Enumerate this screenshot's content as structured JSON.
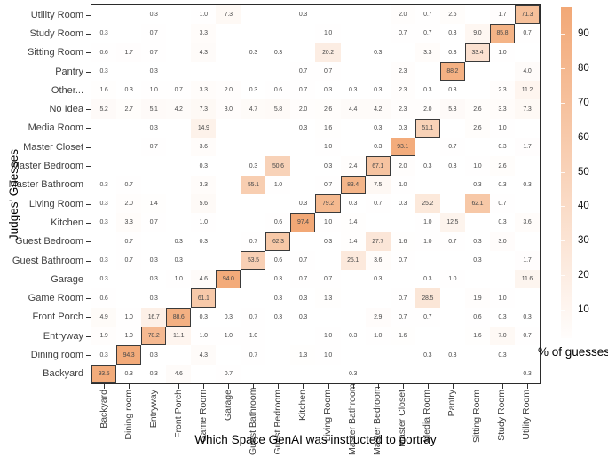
{
  "figure": {
    "x_axis_title": "Which Space GenAI was instructed to portray",
    "y_axis_title": "Judges' Guesses",
    "legend_title": "% of guesses"
  },
  "colors": {
    "scale_low": "#FFFFFF",
    "scale_high": "#F2A672",
    "diag_cell_border": "#3A3A3A",
    "panel_border": "#2B2B2B",
    "axis_text": "#404040"
  },
  "chart_data": {
    "type": "heatmap",
    "title": "",
    "xlabel": "Which Space GenAI was instructed to portray",
    "ylabel": "Judges' Guesses",
    "legend": {
      "title": "% of guesses",
      "ticks": [
        90,
        80,
        70,
        60,
        50,
        40,
        30,
        20,
        10
      ],
      "position": "right",
      "range": [
        0,
        100
      ]
    },
    "grid": false,
    "value_unit": "percent",
    "highlight_rule": "cells where judge guess equals instructed space are outlined",
    "x_categories": [
      "Backyard",
      "Dining room",
      "Entryway",
      "Front Porch",
      "Game Room",
      "Garage",
      "Guest Bathroom",
      "Guest Bedroom",
      "Kitchen",
      "Living Room",
      "Master Bathroom",
      "Master Bedroom",
      "Master Closet",
      "Media Room",
      "Pantry",
      "Sitting Room",
      "Study Room",
      "Utility Room"
    ],
    "rows_top_to_bottom": [
      {
        "label": "Utility Room",
        "values": [
          null,
          null,
          0.3,
          null,
          1.0,
          7.3,
          null,
          null,
          0.3,
          null,
          null,
          null,
          2.0,
          0.7,
          2.6,
          null,
          1.7,
          71.3
        ]
      },
      {
        "label": "Study Room",
        "values": [
          0.3,
          null,
          0.7,
          null,
          3.3,
          null,
          null,
          null,
          null,
          1.0,
          null,
          null,
          0.7,
          0.7,
          0.3,
          9.0,
          85.8,
          0.7
        ]
      },
      {
        "label": "Sitting Room",
        "values": [
          0.6,
          1.7,
          0.7,
          null,
          4.3,
          null,
          0.3,
          0.3,
          null,
          20.2,
          null,
          0.3,
          null,
          3.3,
          0.3,
          33.4,
          1.0,
          null
        ]
      },
      {
        "label": "Pantry",
        "values": [
          0.3,
          null,
          0.3,
          null,
          null,
          null,
          null,
          null,
          0.7,
          0.7,
          null,
          null,
          2.3,
          null,
          88.2,
          null,
          null,
          4.0
        ]
      },
      {
        "label": "Other...",
        "values": [
          1.6,
          0.3,
          1.0,
          0.7,
          3.3,
          2.0,
          0.3,
          0.6,
          0.7,
          0.3,
          0.3,
          0.3,
          2.3,
          0.3,
          0.3,
          null,
          2.3,
          11.2
        ]
      },
      {
        "label": "No Idea",
        "values": [
          5.2,
          2.7,
          5.1,
          4.2,
          7.3,
          3.0,
          4.7,
          5.8,
          2.0,
          2.6,
          4.4,
          4.2,
          2.3,
          2.0,
          5.3,
          2.6,
          3.3,
          7.3
        ]
      },
      {
        "label": "Media Room",
        "values": [
          null,
          null,
          0.3,
          null,
          14.9,
          null,
          null,
          null,
          0.3,
          1.6,
          null,
          0.3,
          0.3,
          51.1,
          null,
          2.6,
          1.0,
          null
        ]
      },
      {
        "label": "Master Closet",
        "values": [
          null,
          null,
          0.7,
          null,
          3.6,
          null,
          null,
          null,
          null,
          1.0,
          null,
          0.3,
          93.1,
          null,
          0.7,
          null,
          0.3,
          1.7
        ]
      },
      {
        "label": "Master Bedroom",
        "values": [
          null,
          null,
          null,
          null,
          0.3,
          null,
          0.3,
          50.6,
          null,
          0.3,
          2.4,
          67.1,
          2.0,
          0.3,
          0.3,
          1.0,
          2.6,
          null
        ]
      },
      {
        "label": "Master Bathroom",
        "values": [
          0.3,
          0.7,
          null,
          null,
          3.3,
          null,
          55.1,
          1.0,
          null,
          0.7,
          83.4,
          7.5,
          1.0,
          null,
          null,
          0.3,
          0.3,
          0.3
        ]
      },
      {
        "label": "Living Room",
        "values": [
          0.3,
          2.0,
          1.4,
          null,
          5.6,
          null,
          null,
          null,
          0.3,
          79.2,
          0.3,
          0.7,
          0.3,
          25.2,
          null,
          62.1,
          0.7,
          null
        ]
      },
      {
        "label": "Kitchen",
        "values": [
          0.3,
          3.3,
          0.7,
          null,
          1.0,
          null,
          null,
          0.6,
          97.4,
          1.0,
          1.4,
          null,
          null,
          1.0,
          12.5,
          null,
          0.3,
          3.6
        ]
      },
      {
        "label": "Guest Bedroom",
        "values": [
          null,
          0.7,
          null,
          0.3,
          0.3,
          null,
          0.7,
          62.3,
          null,
          0.3,
          1.4,
          27.7,
          1.6,
          1.0,
          0.7,
          0.3,
          3.0,
          null
        ]
      },
      {
        "label": "Guest Bathroom",
        "values": [
          0.3,
          0.7,
          0.3,
          0.3,
          null,
          null,
          53.5,
          0.6,
          0.7,
          null,
          25.1,
          3.6,
          0.7,
          null,
          null,
          0.3,
          null,
          1.7
        ]
      },
      {
        "label": "Garage",
        "values": [
          0.3,
          null,
          0.3,
          1.0,
          4.6,
          94.0,
          null,
          0.3,
          0.7,
          0.7,
          null,
          0.3,
          null,
          0.3,
          1.0,
          null,
          null,
          11.6
        ]
      },
      {
        "label": "Game Room",
        "values": [
          0.6,
          null,
          0.3,
          null,
          61.1,
          null,
          null,
          0.3,
          0.3,
          1.3,
          null,
          null,
          0.7,
          28.5,
          null,
          1.9,
          1.0,
          null
        ]
      },
      {
        "label": "Front Porch",
        "values": [
          4.9,
          1.0,
          16.7,
          88.6,
          0.3,
          0.3,
          0.7,
          0.3,
          0.3,
          null,
          null,
          2.9,
          0.7,
          0.7,
          null,
          0.6,
          0.3,
          0.3
        ]
      },
      {
        "label": "Entryway",
        "values": [
          1.9,
          1.0,
          78.2,
          11.1,
          1.0,
          1.0,
          1.0,
          null,
          null,
          1.0,
          0.3,
          1.0,
          1.6,
          null,
          null,
          1.6,
          7.0,
          0.7
        ]
      },
      {
        "label": "Dining room",
        "values": [
          0.3,
          94.3,
          0.3,
          null,
          4.3,
          null,
          0.7,
          null,
          1.3,
          1.0,
          null,
          null,
          null,
          0.3,
          0.3,
          null,
          0.3,
          null
        ]
      },
      {
        "label": "Backyard",
        "values": [
          93.5,
          0.3,
          0.3,
          4.6,
          null,
          0.7,
          null,
          null,
          null,
          null,
          0.3,
          null,
          null,
          null,
          null,
          null,
          null,
          0.3
        ]
      }
    ]
  }
}
